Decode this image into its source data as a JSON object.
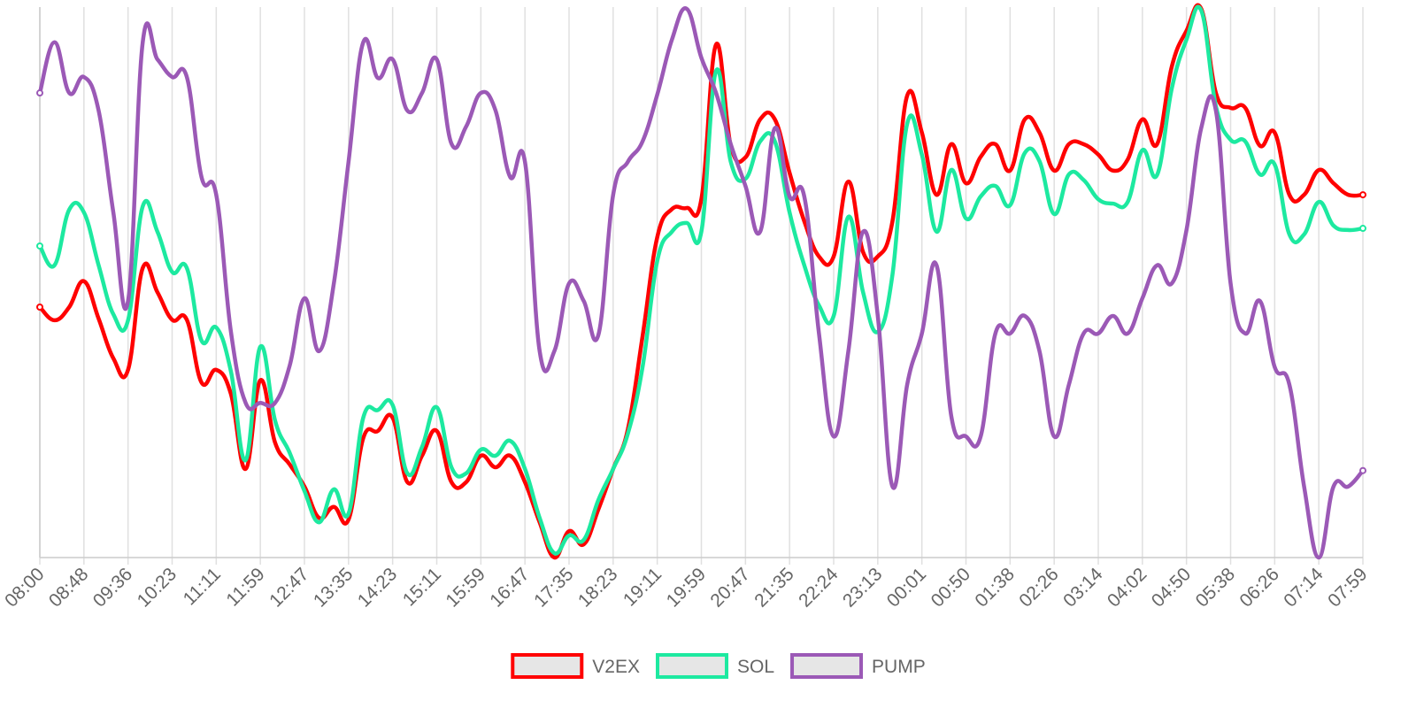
{
  "chart_data": {
    "type": "line",
    "categories": [
      "08:00",
      null,
      null,
      "08:48",
      null,
      null,
      "09:36",
      null,
      null,
      "10:23",
      null,
      null,
      "11:11",
      null,
      null,
      "11:59",
      null,
      null,
      "12:47",
      null,
      null,
      "13:35",
      null,
      null,
      "14:23",
      null,
      null,
      "15:11",
      null,
      null,
      "15:59",
      null,
      null,
      "16:47",
      null,
      null,
      "17:35",
      null,
      null,
      "18:23",
      null,
      null,
      "19:11",
      null,
      null,
      "19:59",
      null,
      null,
      "20:47",
      null,
      null,
      "21:35",
      null,
      null,
      "22:24",
      null,
      null,
      "23:13",
      null,
      null,
      "00:01",
      null,
      null,
      "00:50",
      null,
      null,
      "01:38",
      null,
      null,
      "02:26",
      null,
      null,
      "03:14",
      null,
      null,
      "04:02",
      null,
      null,
      "04:50",
      null,
      null,
      "05:38",
      null,
      null,
      "06:26",
      null,
      null,
      "07:14",
      null,
      null,
      "07:59"
    ],
    "series": [
      {
        "name": "V2EX",
        "color": "#ff0000",
        "values": [
          45.5,
          43.1,
          45.5,
          50.2,
          43.4,
          36.2,
          34.1,
          52.6,
          48.2,
          43.2,
          43.2,
          31.8,
          34.1,
          29.7,
          16.1,
          32.2,
          20.9,
          16.9,
          12.9,
          7.2,
          9.2,
          6.9,
          21.7,
          23.0,
          25.4,
          13.7,
          18.5,
          23.0,
          13.7,
          13.7,
          18.5,
          16.4,
          18.5,
          13.7,
          6.4,
          0,
          4.8,
          2.4,
          8.8,
          16.1,
          23.3,
          40.2,
          58.2,
          63.3,
          63.5,
          65.1,
          93.2,
          74.8,
          72.7,
          79.6,
          79.6,
          69.9,
          61.1,
          54.7,
          54.7,
          68.3,
          55.5,
          54.7,
          61.1,
          83.9,
          77.2,
          65.9,
          75.1,
          68.0,
          72.8,
          75.1,
          70.3,
          79.6,
          77.2,
          70.3,
          75.1,
          75.1,
          73.2,
          70.3,
          72.3,
          79.6,
          75.1,
          89.2,
          95.7,
          99.7,
          84.4,
          81.7,
          81.7,
          74.8,
          77.2,
          65.9,
          65.9,
          70.4,
          68.0,
          65.9,
          65.9
        ]
      },
      {
        "name": "SOL",
        "color": "#1de9a0",
        "values": [
          56.6,
          53.1,
          63.2,
          62.7,
          53.1,
          44.2,
          43.1,
          63.8,
          59.2,
          51.9,
          52.6,
          39.4,
          41.8,
          33.8,
          17.7,
          38.3,
          24.9,
          19.0,
          12.1,
          6.4,
          12.4,
          8.0,
          25.4,
          26.8,
          27.7,
          15.3,
          20.1,
          27.3,
          16.4,
          15.3,
          19.6,
          18.5,
          21.2,
          16.1,
          7.2,
          0.8,
          4.0,
          3.2,
          10.5,
          16.1,
          22.5,
          34.6,
          53.9,
          59.2,
          60.8,
          59.2,
          88.4,
          71.9,
          68.8,
          75.6,
          75.6,
          62.7,
          53.1,
          45.8,
          43.9,
          61.9,
          48.2,
          41.0,
          51.4,
          78.8,
          73.2,
          59.2,
          70.4,
          61.6,
          65.6,
          67.5,
          64.0,
          73.5,
          72.0,
          62.4,
          69.6,
          68.6,
          65.1,
          64.3,
          64.6,
          74.0,
          69.5,
          85.2,
          94.1,
          99.4,
          82.0,
          75.9,
          75.6,
          69.6,
          71.4,
          58.7,
          58.7,
          64.6,
          60.3,
          59.5,
          59.8
        ]
      },
      {
        "name": "PUMP",
        "color": "#9b59b6",
        "values": [
          84.4,
          93.6,
          84.4,
          87.3,
          81.2,
          62.7,
          46.6,
          93.6,
          90.5,
          87.3,
          87.3,
          69.1,
          65.9,
          41.0,
          28.1,
          28.1,
          28.1,
          34.9,
          47.1,
          37.5,
          49.8,
          71.9,
          93.6,
          87.1,
          90.5,
          81.2,
          84.4,
          90.5,
          75.2,
          78.3,
          84.4,
          81.2,
          69.1,
          71.9,
          37.5,
          37.5,
          49.8,
          46.6,
          40.5,
          65.9,
          71.9,
          75.6,
          84.1,
          94.1,
          99.7,
          90.8,
          84.4,
          75.1,
          67.5,
          59.2,
          78.0,
          65.6,
          65.6,
          40.7,
          22.0,
          37.5,
          59.2,
          43.9,
          12.9,
          31.4,
          40.7,
          53.1,
          25.7,
          22.0,
          22.0,
          40.7,
          40.7,
          43.9,
          37.5,
          22.0,
          31.4,
          40.7,
          40.7,
          43.9,
          40.7,
          47.1,
          53.1,
          49.8,
          59.5,
          78.0,
          81.2,
          49.8,
          40.7,
          46.6,
          34.6,
          31.4,
          12.9,
          0,
          12.9,
          12.9,
          15.8
        ]
      }
    ],
    "ylim": [
      0,
      100
    ],
    "grid": true,
    "legend": "bottom"
  }
}
